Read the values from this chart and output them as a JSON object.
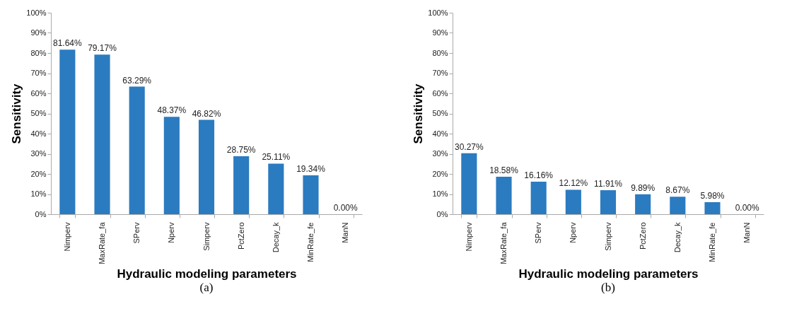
{
  "chart_data": [
    {
      "type": "bar",
      "xlabel": "Hydraulic modeling parameters",
      "ylabel": "Sensitivity",
      "categories": [
        "Nimperv",
        "MaxRate_fa",
        "SPerv",
        "Nperv",
        "Simperv",
        "PctZero",
        "Decay_k",
        "MinRate_fe",
        "ManN"
      ],
      "values": [
        81.64,
        79.17,
        63.29,
        48.37,
        46.82,
        28.75,
        25.11,
        19.34,
        0
      ],
      "value_labels": [
        "81.64%",
        "79.17%",
        "63.29%",
        "48.37%",
        "46.82%",
        "28.75%",
        "25.11%",
        "19.34%",
        "0.00%"
      ],
      "color": "#2b7bc0",
      "ylim": [
        0,
        100
      ],
      "yticks": [
        {
          "value": 0,
          "label": "0%"
        },
        {
          "value": 10,
          "label": "10%"
        },
        {
          "value": 20,
          "label": "20%"
        },
        {
          "value": 30,
          "label": "30%"
        },
        {
          "value": 40,
          "label": "40%"
        },
        {
          "value": 50,
          "label": "50%"
        },
        {
          "value": 60,
          "label": "60%"
        },
        {
          "value": 70,
          "label": "70%"
        },
        {
          "value": 80,
          "label": "80%"
        },
        {
          "value": 90,
          "label": "90%"
        },
        {
          "value": 100,
          "label": "100%"
        }
      ],
      "grid": false,
      "annotations": [
        "(a)"
      ]
    },
    {
      "type": "bar",
      "xlabel": "Hydraulic modeling parameters",
      "ylabel": "Sensitivity",
      "categories": [
        "Nimperv",
        "MaxRate_fa",
        "SPerv",
        "Nperv",
        "Simperv",
        "PctZero",
        "Decay_k",
        "MinRate_fe",
        "ManN"
      ],
      "values": [
        30.27,
        18.58,
        16.16,
        12.12,
        11.91,
        9.89,
        8.67,
        5.98,
        0
      ],
      "value_labels": [
        "30.27%",
        "18.58%",
        "16.16%",
        "12.12%",
        "11.91%",
        "9.89%",
        "8.67%",
        "5.98%",
        "0.00%"
      ],
      "color": "#2b7bc0",
      "ylim": [
        0,
        100
      ],
      "yticks": [
        {
          "value": 0,
          "label": "0%"
        },
        {
          "value": 10,
          "label": "10%"
        },
        {
          "value": 20,
          "label": "20%"
        },
        {
          "value": 30,
          "label": "30%"
        },
        {
          "value": 40,
          "label": "40%"
        },
        {
          "value": 50,
          "label": "50%"
        },
        {
          "value": 60,
          "label": "60%"
        },
        {
          "value": 70,
          "label": "70%"
        },
        {
          "value": 80,
          "label": "80%"
        },
        {
          "value": 90,
          "label": "90%"
        },
        {
          "value": 100,
          "label": "100%"
        }
      ],
      "grid": false,
      "annotations": [
        "(b)"
      ]
    }
  ]
}
